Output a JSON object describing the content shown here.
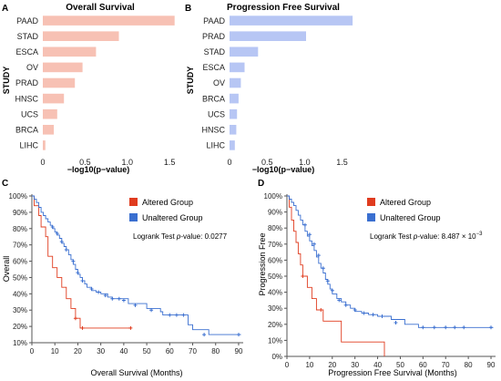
{
  "colors": {
    "os_bar": "#f7c1b4",
    "pfs_bar": "#b7c6f4",
    "altered": "#e03c1f",
    "unaltered": "#3a6fd0",
    "axis": "#555555"
  },
  "chart_data": [
    {
      "panel": "A",
      "type": "bar",
      "orientation": "horizontal",
      "title": "Overall Survival",
      "xlabel": "−log10(p−value)",
      "ylabel": "STUDY",
      "categories": [
        "PAAD",
        "STAD",
        "ESCA",
        "OV",
        "PRAD",
        "HNSC",
        "UCS",
        "BRCA",
        "LIHC"
      ],
      "values": [
        1.56,
        0.9,
        0.63,
        0.47,
        0.38,
        0.25,
        0.17,
        0.13,
        0.03
      ],
      "xlim": [
        0,
        1.65
      ],
      "xticks": [
        "0",
        "0.5",
        "1.0",
        "1.5"
      ],
      "grid": false
    },
    {
      "panel": "B",
      "type": "bar",
      "orientation": "horizontal",
      "title": "Progression Free Survival",
      "xlabel": "−log10(p−value)",
      "ylabel": "STUDY",
      "categories": [
        "PAAD",
        "PRAD",
        "STAD",
        "ESCA",
        "OV",
        "BRCA",
        "UCS",
        "HNSC",
        "LIHC"
      ],
      "values": [
        1.64,
        1.02,
        0.38,
        0.2,
        0.15,
        0.12,
        0.1,
        0.09,
        0.07
      ],
      "xlim": [
        0,
        1.7
      ],
      "xticks": [
        "0",
        "0.5",
        "1.0",
        "1.5"
      ],
      "grid": false
    },
    {
      "panel": "C",
      "type": "line",
      "subtype": "kaplan-meier",
      "xlabel": "Overall Survival (Months)",
      "ylabel": "Overall",
      "xlim": [
        0,
        92
      ],
      "ylim": [
        10,
        100
      ],
      "xticks": [
        "0",
        "10",
        "20",
        "30",
        "40",
        "50",
        "60",
        "70",
        "80",
        "90"
      ],
      "yticks": [
        "10%",
        "20%",
        "30%",
        "40%",
        "50%",
        "60%",
        "70%",
        "80%",
        "90%",
        "100%"
      ],
      "legend": [
        "Altered Group",
        "Unaltered Group"
      ],
      "legend_position": "top-right",
      "annotation": {
        "prefix": "Logrank Test ",
        "italic": "p",
        "suffix": "-value: 0.0277"
      },
      "series": [
        {
          "name": "Altered Group",
          "x": [
            0,
            1,
            3,
            4,
            6,
            7,
            9,
            11,
            13,
            15,
            17,
            19,
            21,
            43
          ],
          "y": [
            100,
            94,
            88,
            81,
            75,
            63,
            56,
            50,
            44,
            37,
            31,
            25,
            19,
            19
          ],
          "censored": [
            [
              19,
              25
            ],
            [
              22,
              19
            ],
            [
              43,
              19
            ]
          ]
        },
        {
          "name": "Unaltered Group",
          "x": [
            0,
            1,
            2,
            3,
            4,
            5,
            6,
            7,
            8,
            9,
            10,
            11,
            12,
            13,
            14,
            15,
            16,
            17,
            18,
            19,
            20,
            21,
            22,
            23,
            24,
            26,
            28,
            30,
            33,
            35,
            38,
            42,
            50,
            56,
            57,
            59,
            68,
            70,
            77,
            91
          ],
          "y": [
            100,
            98,
            96,
            93,
            90,
            88,
            86,
            84,
            82,
            80,
            78,
            76,
            74,
            71,
            69,
            67,
            64,
            61,
            58,
            55,
            52,
            50,
            48,
            46,
            44,
            42,
            41,
            40,
            38,
            37,
            37,
            34,
            31,
            29,
            27,
            27,
            21,
            18,
            15,
            15
          ],
          "censored": [
            [
              9,
              81
            ],
            [
              11,
              77
            ],
            [
              13,
              72
            ],
            [
              15,
              67
            ],
            [
              18,
              60
            ],
            [
              20,
              53
            ],
            [
              22,
              48
            ],
            [
              26,
              43
            ],
            [
              29,
              41
            ],
            [
              32,
              39
            ],
            [
              35,
              37
            ],
            [
              38,
              37
            ],
            [
              40,
              36
            ],
            [
              45,
              33
            ],
            [
              52,
              30
            ],
            [
              60,
              27
            ],
            [
              63,
              27
            ],
            [
              66,
              27
            ],
            [
              75,
              15
            ],
            [
              90,
              15
            ]
          ]
        }
      ]
    },
    {
      "panel": "D",
      "type": "line",
      "subtype": "kaplan-meier",
      "xlabel": "Progression Free Survival (Months)",
      "ylabel": "Progression Free",
      "xlim": [
        0,
        92
      ],
      "ylim": [
        0,
        100
      ],
      "xticks": [
        "0",
        "10",
        "20",
        "30",
        "40",
        "50",
        "60",
        "70",
        "80",
        "90"
      ],
      "yticks": [
        "0%",
        "10%",
        "20%",
        "30%",
        "40%",
        "50%",
        "60%",
        "70%",
        "80%",
        "90%",
        "100%"
      ],
      "legend": [
        "Altered Group",
        "Unaltered Group"
      ],
      "legend_position": "top-right",
      "annotation": {
        "prefix": "Logrank Test ",
        "italic": "p",
        "suffix": "-value: 8.487 × 10",
        "sup": "−3"
      },
      "series": [
        {
          "name": "Altered Group",
          "x": [
            0,
            1,
            2,
            3,
            4,
            5,
            6,
            7,
            9,
            11,
            13,
            16,
            24,
            43
          ],
          "y": [
            100,
            93,
            85,
            78,
            71,
            64,
            57,
            50,
            43,
            36,
            29,
            22,
            9,
            0
          ],
          "censored": [
            [
              7,
              50
            ],
            [
              15,
              29
            ]
          ]
        },
        {
          "name": "Unaltered Group",
          "x": [
            0,
            1,
            2,
            3,
            4,
            5,
            6,
            7,
            8,
            9,
            10,
            11,
            12,
            13,
            14,
            15,
            16,
            17,
            18,
            19,
            20,
            22,
            24,
            26,
            28,
            30,
            33,
            36,
            40,
            46,
            52,
            58,
            91
          ],
          "y": [
            100,
            98,
            96,
            94,
            91,
            88,
            85,
            82,
            78,
            75,
            72,
            69,
            66,
            62,
            58,
            55,
            52,
            48,
            45,
            42,
            39,
            36,
            34,
            32,
            30,
            28,
            27,
            26,
            25,
            23,
            20,
            18,
            18
          ],
          "censored": [
            [
              8,
              82
            ],
            [
              10,
              76
            ],
            [
              12,
              70
            ],
            [
              14,
              63
            ],
            [
              16,
              55
            ],
            [
              18,
              47
            ],
            [
              20,
              41
            ],
            [
              23,
              35
            ],
            [
              26,
              32
            ],
            [
              30,
              29
            ],
            [
              34,
              27
            ],
            [
              38,
              26
            ],
            [
              42,
              25
            ],
            [
              48,
              21
            ],
            [
              60,
              18
            ],
            [
              65,
              18
            ],
            [
              70,
              18
            ],
            [
              74,
              18
            ],
            [
              78,
              18
            ],
            [
              90,
              18
            ]
          ]
        }
      ]
    }
  ]
}
